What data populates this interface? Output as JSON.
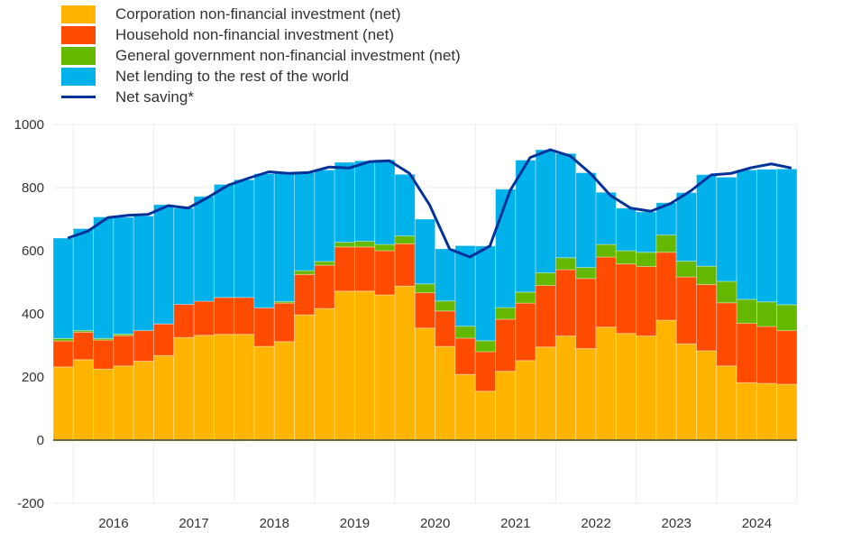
{
  "chart_data": {
    "type": "bar",
    "stacked": true,
    "title": "",
    "xlabel": "",
    "ylabel": "",
    "ylim": [
      -200,
      1000
    ],
    "yticks": [
      -200,
      0,
      200,
      400,
      600,
      800,
      1000
    ],
    "grid": true,
    "legend_position": "top-left",
    "year_labels": [
      "2016",
      "2017",
      "2018",
      "2019",
      "2020",
      "2021",
      "2022",
      "2023",
      "2024"
    ],
    "first_quarter": "2015Q4",
    "colors": {
      "corp": "#ffb400",
      "household": "#ff4b00",
      "gov": "#65b800",
      "lending": "#00b1ea",
      "saving": "#003299"
    },
    "series": [
      {
        "key": "corp",
        "name": "Corporation non-financial investment (net)",
        "values": [
          232,
          255,
          225,
          235,
          250,
          268,
          325,
          332,
          335,
          335,
          297,
          312,
          397,
          417,
          472,
          472,
          460,
          488,
          355,
          297,
          208,
          155,
          218,
          252,
          295,
          330,
          290,
          358,
          338,
          330,
          380,
          305,
          283,
          235,
          182,
          180,
          177
        ]
      },
      {
        "key": "household",
        "name": "Household non-financial investment (net)",
        "values": [
          82,
          87,
          92,
          96,
          97,
          100,
          105,
          108,
          117,
          117,
          122,
          122,
          128,
          137,
          140,
          140,
          140,
          134,
          112,
          112,
          115,
          125,
          165,
          182,
          195,
          210,
          222,
          222,
          220,
          220,
          215,
          212,
          210,
          200,
          188,
          180,
          170
        ]
      },
      {
        "key": "gov",
        "name": "General government non-financial investment (net)",
        "values": [
          8,
          5,
          5,
          5,
          0,
          -3,
          -3,
          -3,
          -3,
          -3,
          0,
          5,
          12,
          12,
          15,
          18,
          20,
          25,
          28,
          32,
          38,
          35,
          37,
          35,
          40,
          38,
          35,
          40,
          42,
          45,
          55,
          50,
          58,
          68,
          76,
          78,
          82
        ]
      },
      {
        "key": "lending",
        "name": "Net lending to the rest of the world",
        "values": [
          318,
          323,
          385,
          370,
          363,
          378,
          305,
          332,
          358,
          373,
          425,
          408,
          310,
          290,
          253,
          255,
          268,
          195,
          205,
          165,
          255,
          300,
          375,
          418,
          390,
          330,
          300,
          165,
          135,
          128,
          102,
          217,
          290,
          330,
          410,
          420,
          430
        ]
      },
      {
        "key": "saving",
        "name": "Net saving*",
        "type": "line",
        "values": [
          640,
          662,
          705,
          712,
          715,
          743,
          735,
          770,
          808,
          830,
          850,
          845,
          848,
          865,
          862,
          882,
          885,
          845,
          745,
          605,
          580,
          615,
          790,
          895,
          920,
          900,
          845,
          775,
          735,
          725,
          750,
          790,
          840,
          845,
          863,
          875,
          862
        ]
      }
    ]
  }
}
